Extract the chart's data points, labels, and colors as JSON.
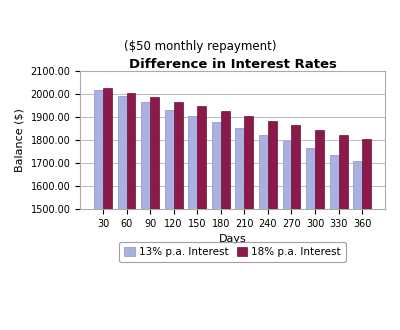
{
  "title": "Difference in Interest Rates",
  "subtitle": "($50 monthly repayment)",
  "xlabel": "Days",
  "ylabel": "Balance ($)",
  "days": [
    30,
    60,
    90,
    120,
    150,
    180,
    210,
    240,
    270,
    300,
    330,
    360
  ],
  "series_13pct": [
    2018,
    1992,
    1963,
    1932,
    1906,
    1876,
    1850,
    1822,
    1797,
    1763,
    1733,
    1706
  ],
  "series_18pct": [
    2026,
    2005,
    1986,
    1963,
    1946,
    1924,
    1906,
    1884,
    1863,
    1843,
    1823,
    1804
  ],
  "color_13pct": "#aab0e0",
  "color_18pct": "#8b1a4a",
  "color_13pct_edge": "#8890cc",
  "color_18pct_edge": "#6a1238",
  "ylim_min": 1500,
  "ylim_max": 2100,
  "yticks": [
    1500,
    1600,
    1700,
    1800,
    1900,
    2000,
    2100
  ],
  "legend_13": "13% p.a. Interest",
  "legend_18": "18% p.a. Interest",
  "bar_width": 0.38,
  "figsize": [
    4.0,
    3.3
  ],
  "dpi": 100,
  "background_color": "#ffffff",
  "plot_bg_color": "#ffffff",
  "grid_color": "#bbbbbb",
  "title_fontsize": 9.5,
  "subtitle_fontsize": 8.5,
  "axis_label_fontsize": 8,
  "tick_fontsize": 7,
  "legend_fontsize": 7.5
}
